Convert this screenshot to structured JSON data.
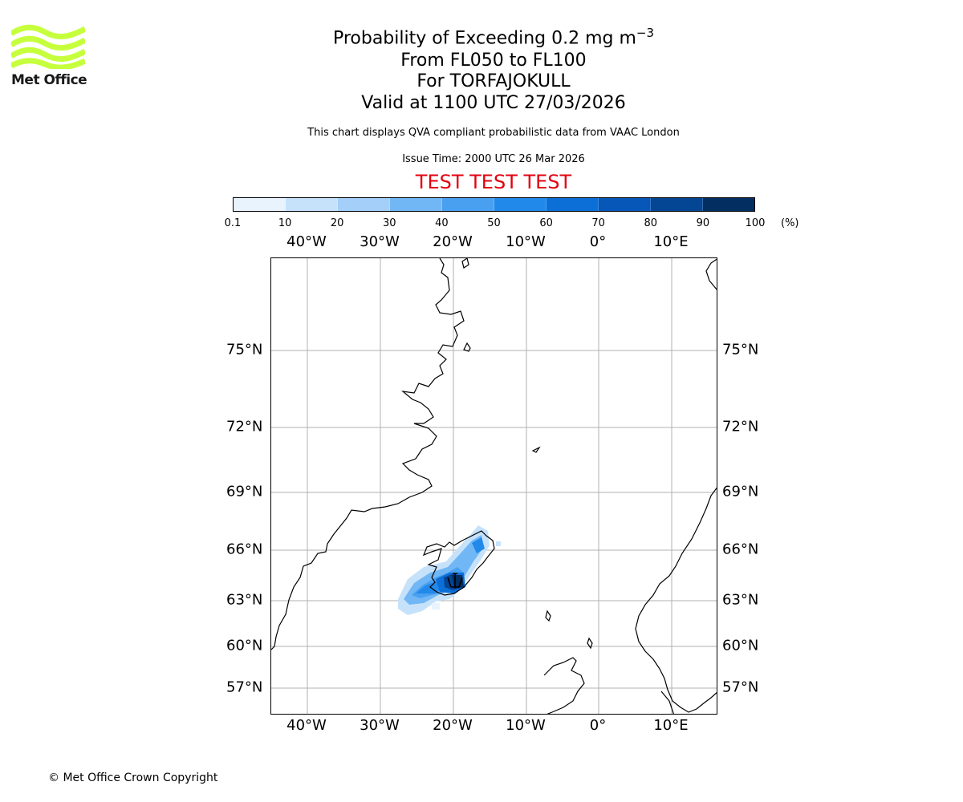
{
  "title": {
    "text": "Probability of Exceeding 0.2 mg m",
    "sup": "−3"
  },
  "level_range": "From FL050 to FL100",
  "volcano": "For TORFAJOKULL",
  "valid_time": "Valid at 1100 UTC 27/03/2026",
  "subtitle": "This chart displays QVA compliant probabilistic data from VAAC London",
  "issue_time": "Issue Time: 2000 UTC 26 Mar 2026",
  "test_banner": "TEST TEST TEST",
  "logo": {
    "text": "Met Office",
    "icon": "met-office-wave-logo",
    "color": "#c6ff3c"
  },
  "colorbar": {
    "ticks": [
      "0.1",
      "10",
      "20",
      "30",
      "40",
      "50",
      "60",
      "70",
      "80",
      "90",
      "100"
    ],
    "unit": "(%)",
    "colors": [
      "#e8f3fe",
      "#c6e2fb",
      "#a3cff8",
      "#72b7f5",
      "#4aa0f0",
      "#2189ea",
      "#0c6fd8",
      "#0657b8",
      "#044594",
      "#022e62"
    ]
  },
  "map": {
    "lon_labels": [
      "40°W",
      "30°W",
      "20°W",
      "10°W",
      "0°",
      "10°E"
    ],
    "lat_labels": [
      "75°N",
      "72°N",
      "69°N",
      "66°N",
      "63°N",
      "60°N",
      "57°N"
    ]
  },
  "copyright": "© Met Office Crown Copyright"
}
